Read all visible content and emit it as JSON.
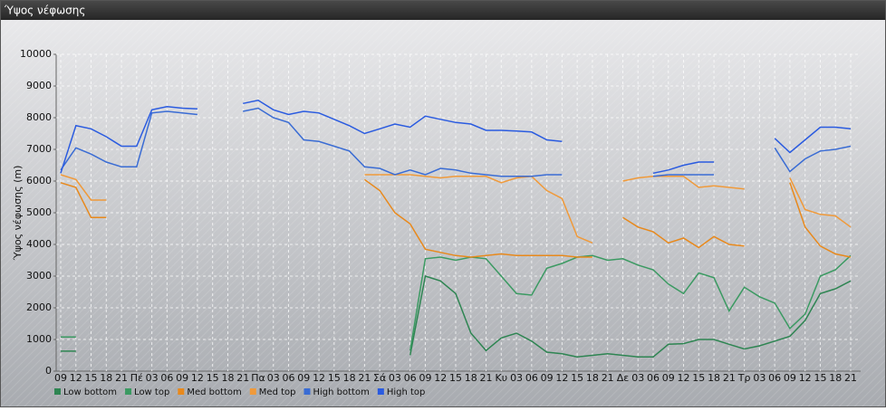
{
  "chart_data": {
    "type": "line",
    "title": "Ύψος νέφωσης",
    "y_label": "Ύψος νέφωσης (m)",
    "categories": [
      "09",
      "12",
      "15",
      "18",
      "21",
      "Πέ",
      "03",
      "06",
      "09",
      "12",
      "15",
      "18",
      "21",
      "Πα",
      "03",
      "06",
      "09",
      "12",
      "15",
      "18",
      "21",
      "Σά",
      "03",
      "06",
      "09",
      "12",
      "15",
      "18",
      "21",
      "Κυ",
      "03",
      "06",
      "09",
      "12",
      "15",
      "18",
      "21",
      "Δε",
      "03",
      "06",
      "09",
      "12",
      "15",
      "18",
      "21",
      "Τρ",
      "03",
      "06",
      "09",
      "12",
      "15",
      "18",
      "21"
    ],
    "ylim": [
      0,
      10000
    ],
    "yticks": [
      0,
      1000,
      2000,
      3000,
      4000,
      5000,
      6000,
      7000,
      8000,
      9000,
      10000
    ],
    "grid": true,
    "legend": "bottom",
    "series": [
      {
        "name": "Low bottom",
        "color": "#2e8552",
        "values": [
          630,
          630,
          null,
          null,
          null,
          null,
          null,
          null,
          null,
          null,
          null,
          null,
          null,
          null,
          null,
          null,
          null,
          null,
          null,
          null,
          null,
          null,
          null,
          500,
          3000,
          2850,
          2450,
          1200,
          650,
          1050,
          1200,
          950,
          600,
          550,
          450,
          500,
          550,
          500,
          450,
          450,
          850,
          870,
          1000,
          1000,
          850,
          700,
          800,
          950,
          1100,
          1600,
          2450,
          2600,
          2850
        ]
      },
      {
        "name": "Low top",
        "color": "#3b9a62",
        "values": [
          1080,
          1080,
          null,
          null,
          null,
          null,
          null,
          null,
          null,
          null,
          null,
          null,
          null,
          null,
          null,
          null,
          null,
          null,
          null,
          null,
          null,
          null,
          null,
          650,
          3550,
          3600,
          3500,
          3600,
          3550,
          3000,
          2450,
          2400,
          3250,
          3400,
          3600,
          3650,
          3500,
          3550,
          3350,
          3200,
          2750,
          2450,
          3100,
          2950,
          1900,
          2650,
          2350,
          2150,
          1350,
          1800,
          3000,
          3200,
          3650
        ]
      },
      {
        "name": "Med bottom",
        "color": "#e8891c",
        "values": [
          5950,
          5800,
          4850,
          4850,
          null,
          null,
          null,
          null,
          null,
          null,
          null,
          null,
          null,
          null,
          null,
          null,
          null,
          null,
          null,
          null,
          6050,
          5700,
          5000,
          4650,
          3850,
          3750,
          3650,
          3600,
          3650,
          3700,
          3650,
          3650,
          3650,
          3650,
          3600,
          3600,
          null,
          4850,
          4550,
          4400,
          4050,
          4200,
          3900,
          4250,
          4000,
          3950,
          null,
          null,
          5950,
          4550,
          3950,
          3700,
          3600
        ]
      },
      {
        "name": "Med top",
        "color": "#f09a3a",
        "values": [
          6200,
          6050,
          5400,
          5400,
          null,
          null,
          null,
          null,
          null,
          null,
          null,
          null,
          null,
          null,
          null,
          null,
          null,
          null,
          null,
          null,
          6200,
          6200,
          6200,
          6200,
          6150,
          6100,
          6150,
          6150,
          6150,
          5950,
          6100,
          6150,
          5700,
          5450,
          4250,
          4050,
          null,
          6000,
          6100,
          6150,
          6150,
          6150,
          5800,
          5850,
          5800,
          5750,
          null,
          null,
          6100,
          5100,
          4950,
          4900,
          4550
        ]
      },
      {
        "name": "High bottom",
        "color": "#3a6cd4",
        "values": [
          6350,
          7050,
          6850,
          6600,
          6450,
          6450,
          8150,
          8200,
          8150,
          8100,
          null,
          null,
          8200,
          8300,
          8000,
          7850,
          7300,
          7250,
          7100,
          6950,
          6450,
          6400,
          6200,
          6350,
          6200,
          6400,
          6350,
          6250,
          6200,
          6150,
          6150,
          6150,
          6200,
          6200,
          null,
          null,
          null,
          null,
          null,
          6150,
          6200,
          6200,
          6200,
          6200,
          null,
          null,
          null,
          7050,
          6300,
          6700,
          6950,
          7000,
          7100
        ]
      },
      {
        "name": "High top",
        "color": "#2a5be0",
        "values": [
          6250,
          7750,
          7650,
          7400,
          7100,
          7100,
          8250,
          8350,
          8300,
          8280,
          null,
          null,
          8450,
          8550,
          8250,
          8100,
          8200,
          8150,
          7950,
          7750,
          7500,
          7650,
          7800,
          7700,
          8050,
          7950,
          7850,
          7800,
          7600,
          7600,
          7580,
          7550,
          7300,
          7250,
          null,
          null,
          null,
          null,
          null,
          6250,
          6350,
          6500,
          6600,
          6600,
          null,
          null,
          null,
          7350,
          6900,
          7300,
          7700,
          7700,
          7650
        ]
      }
    ]
  }
}
